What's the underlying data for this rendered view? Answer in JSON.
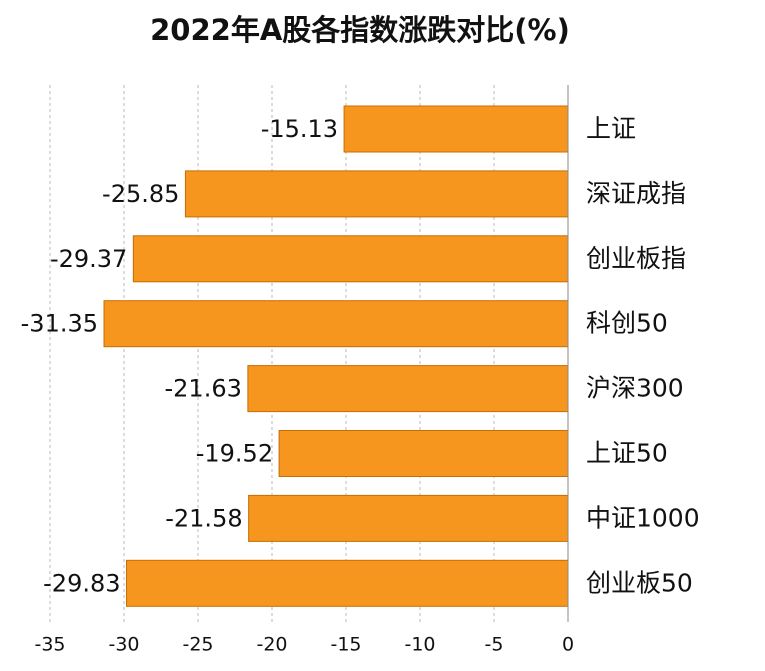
{
  "chart_data": {
    "type": "bar",
    "orientation": "horizontal",
    "title": "2022年A股各指数涨跌对比(%)",
    "categories": [
      "上证",
      "深证成指",
      "创业板指",
      "科创50",
      "沪深300",
      "上证50",
      "中证1000",
      "创业板50"
    ],
    "values": [
      -15.13,
      -25.85,
      -29.37,
      -31.35,
      -21.63,
      -19.52,
      -21.58,
      -29.83
    ],
    "color": "#f7961f",
    "xlim": [
      -35,
      0
    ],
    "xticks": [
      -35,
      -30,
      -25,
      -20,
      -15,
      -10,
      -5,
      0
    ],
    "grid": true
  }
}
